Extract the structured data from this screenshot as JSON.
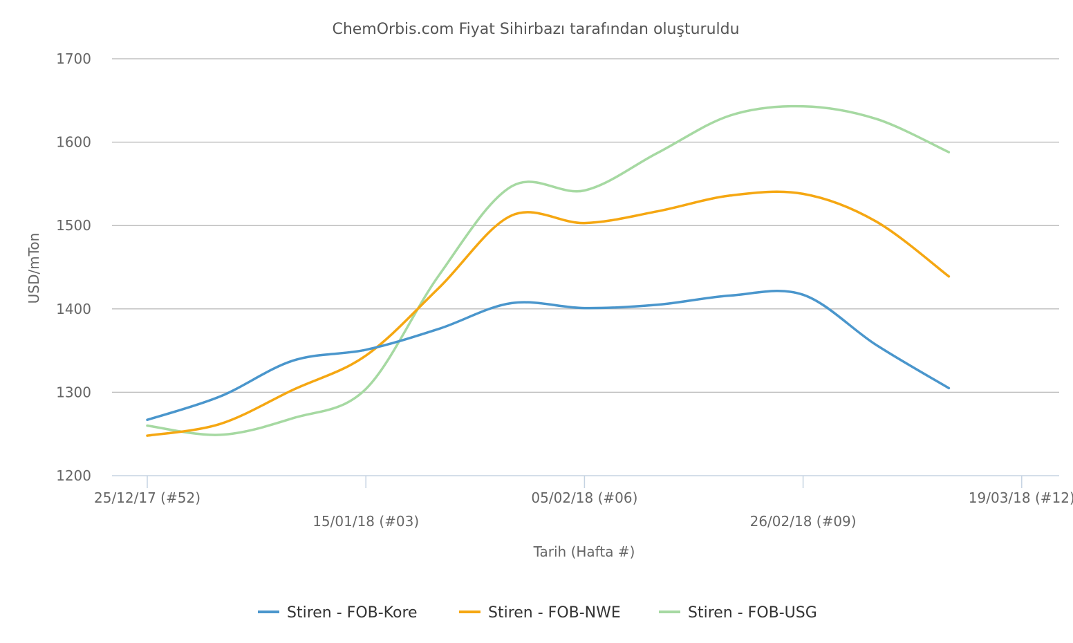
{
  "chart_data": {
    "type": "line",
    "title": "ChemOrbis.com Fiyat Sihirbazı tarafından oluşturuldu",
    "xlabel": "Tarih (Hafta #)",
    "ylabel": "USD/mTon",
    "ylim": [
      1200,
      1700
    ],
    "yticks": [
      1200,
      1300,
      1400,
      1500,
      1600,
      1700
    ],
    "x_tick_labels": [
      "25/12/17 (#52)",
      "15/01/18 (#03)",
      "05/02/18 (#06)",
      "26/02/18 (#09)",
      "19/03/18 (#12)"
    ],
    "x_tick_weeks": [
      0,
      3,
      6,
      9,
      12
    ],
    "legend_position": "bottom",
    "grid": true,
    "x_weeks": [
      0,
      1,
      2,
      3,
      4,
      5,
      6,
      7,
      8,
      9,
      10,
      11
    ],
    "series": [
      {
        "name": "Stiren - FOB-Kore",
        "color": "#4a96cc",
        "values": [
          1267,
          1295,
          1338,
          1351,
          1376,
          1407,
          1401,
          1405,
          1416,
          1417,
          1357,
          1305
        ]
      },
      {
        "name": "Stiren - FOB-NWE",
        "color": "#f5a712",
        "values": [
          1248,
          1262,
          1303,
          1344,
          1425,
          1512,
          1503,
          1517,
          1536,
          1538,
          1505,
          1439
        ]
      },
      {
        "name": "Stiren - FOB-USG",
        "color": "#a6d9a2",
        "values": [
          1260,
          1249,
          1269,
          1304,
          1440,
          1547,
          1542,
          1587,
          1632,
          1643,
          1628,
          1588
        ]
      }
    ]
  }
}
